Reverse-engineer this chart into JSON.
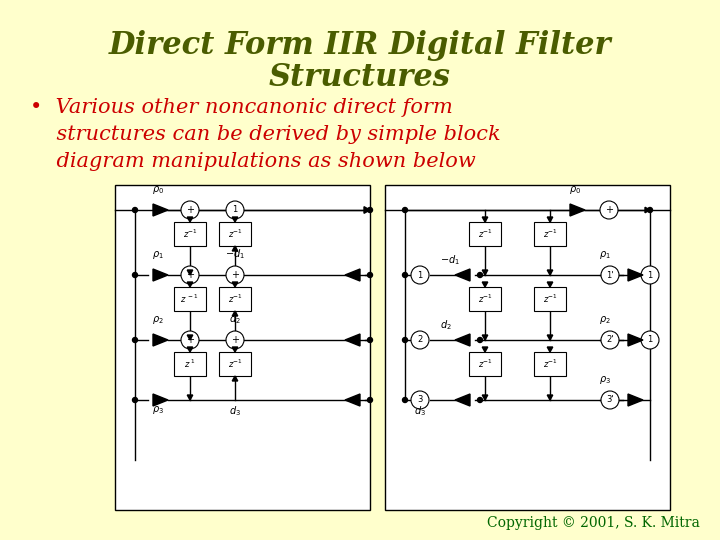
{
  "background_color": "#FFFFCC",
  "title_line1": "Direct Form IIR Digital Filter",
  "title_line2": "Structures",
  "title_color": "#4A5C00",
  "title_fontsize": 22,
  "bullet_text_line1": "•  Various other noncanonic direct form",
  "bullet_text_line2": "    structures can be derived by simple block",
  "bullet_text_line3": "    diagram manipulations as shown below",
  "bullet_color": "#CC0000",
  "bullet_fontsize": 15,
  "copyright_text": "Copyright © 2001, S. K. Mitra",
  "copyright_color": "#006600",
  "copyright_fontsize": 10
}
